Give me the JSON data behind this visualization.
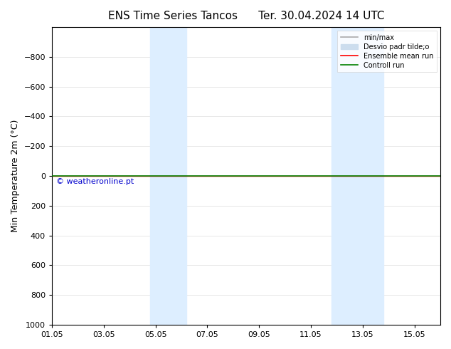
{
  "title": "ENS Time Series Tancos      Ter. 30.04.2024 14 UTC",
  "ylabel": "Min Temperature 2m (°C)",
  "ylim": [
    -1000,
    1000
  ],
  "yticks": [
    -800,
    -600,
    -400,
    -200,
    0,
    200,
    400,
    600,
    800,
    1000
  ],
  "x_start": "2024-05-01",
  "x_end": "2024-05-16",
  "xtick_labels": [
    "01.05",
    "03.05",
    "05.05",
    "07.05",
    "09.05",
    "11.05",
    "13.05",
    "15.05"
  ],
  "xtick_positions": [
    0,
    2,
    4,
    6,
    8,
    10,
    12,
    14
  ],
  "blue_bands": [
    {
      "start": 3.8,
      "end": 5.2
    },
    {
      "start": 10.8,
      "end": 12.8
    }
  ],
  "control_run_y": 0,
  "ensemble_mean_y": 0,
  "control_run_color": "#008000",
  "ensemble_mean_color": "#ff0000",
  "minmax_color": "#aaaaaa",
  "std_color": "#ccddee",
  "band_color": "#ddeeff",
  "watermark": "© weatheronline.pt",
  "watermark_color": "#0000cc",
  "bg_color": "#ffffff",
  "plot_bg_color": "#ffffff",
  "legend_labels": [
    "min/max",
    "Desvio padr tilde;o",
    "Ensemble mean run",
    "Controll run"
  ],
  "legend_colors": [
    "#aaaaaa",
    "#ccddee",
    "#ff0000",
    "#008000"
  ],
  "title_fontsize": 11,
  "tick_fontsize": 8,
  "ylabel_fontsize": 9
}
